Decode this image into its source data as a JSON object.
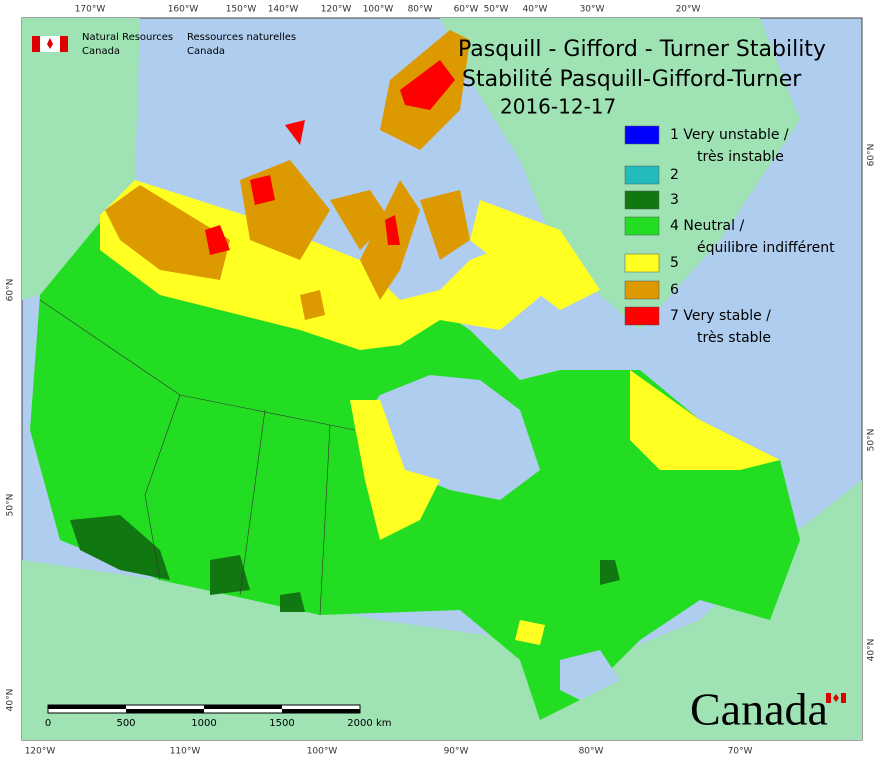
{
  "header": {
    "title_en": "Pasquill - Gifford - Turner Stability",
    "title_fr": "Stabilité Pasquill-Gifford-Turner",
    "date": "2016-12-17"
  },
  "agency": {
    "en": [
      "Natural Resources",
      "Canada"
    ],
    "fr": [
      "Ressources naturelles",
      "Canada"
    ]
  },
  "legend": [
    {
      "color": "#0000ff",
      "label": [
        "1 Very unstable /",
        "très instable"
      ]
    },
    {
      "color": "#22bbbb",
      "label": [
        "2"
      ]
    },
    {
      "color": "#117711",
      "label": [
        "3"
      ]
    },
    {
      "color": "#22dd22",
      "label": [
        "4 Neutral /",
        "équilibre indifférent"
      ]
    },
    {
      "color": "#ffff22",
      "label": [
        "5"
      ]
    },
    {
      "color": "#dd9900",
      "label": [
        "6"
      ]
    },
    {
      "color": "#ff0000",
      "label": [
        "7 Very stable /",
        "très stable"
      ]
    }
  ],
  "graticule": {
    "top": [
      "170°W",
      "160°W",
      "150°W",
      "140°W",
      "120°W",
      "100°W",
      "80°W",
      "60°W",
      "50°W",
      "40°W",
      "30°W",
      "20°W"
    ],
    "bottom": [
      "120°W",
      "110°W",
      "100°W",
      "90°W",
      "80°W",
      "70°W"
    ],
    "left": [
      "60°N",
      "50°N",
      "40°N"
    ],
    "right": [
      "60°N",
      "50°N",
      "40°N"
    ]
  },
  "scale_bar": {
    "labels": [
      0,
      500,
      1000,
      1500,
      2000
    ],
    "unit": "km"
  },
  "wordmark": "Canada"
}
